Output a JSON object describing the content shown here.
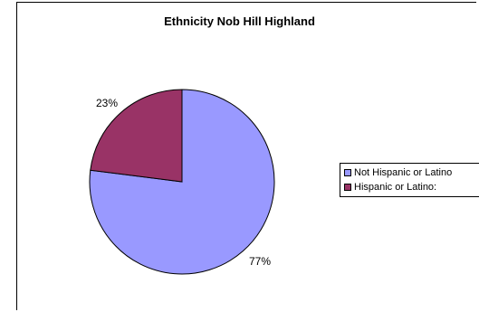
{
  "chart_data": {
    "type": "pie",
    "title": "Ethnicity Nob Hill Highland",
    "categories": [
      "Not Hispanic or Latino",
      "Hispanic or Latino:"
    ],
    "values": [
      77,
      23
    ],
    "labels": [
      "77%",
      "23%"
    ],
    "colors": [
      "#9999FF",
      "#993366"
    ],
    "legend_position": "right"
  }
}
